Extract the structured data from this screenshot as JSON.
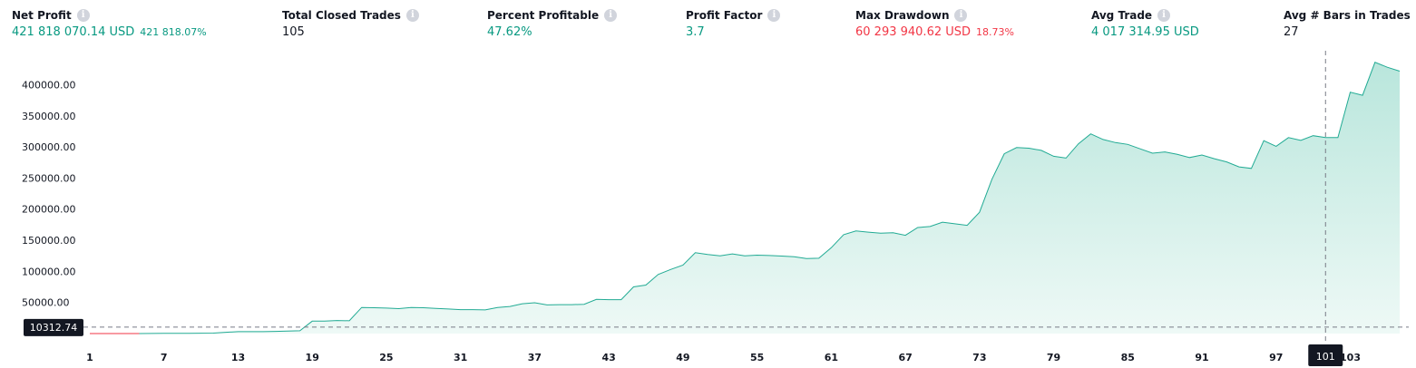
{
  "stats": [
    {
      "label": "Net Profit",
      "value": "421 818 070.14 USD",
      "sub": "421 818.07%",
      "tone": "pos"
    },
    {
      "label": "Total Closed Trades",
      "value": "105",
      "sub": "",
      "tone": "neutral"
    },
    {
      "label": "Percent Profitable",
      "value": "47.62%",
      "sub": "",
      "tone": "pos"
    },
    {
      "label": "Profit Factor",
      "value": "3.7",
      "sub": "",
      "tone": "pos"
    },
    {
      "label": "Max Drawdown",
      "value": "60 293 940.62 USD",
      "sub": "18.73%",
      "tone": "neg"
    },
    {
      "label": "Avg Trade",
      "value": "4 017 314.95 USD",
      "sub": "",
      "tone": "pos"
    },
    {
      "label": "Avg # Bars in Trades",
      "value": "27",
      "sub": "",
      "tone": "neutral"
    }
  ],
  "info_icon": "info-icon",
  "colors": {
    "line": "#22ab94",
    "fill_top": "#b9e6dc",
    "fill_bottom": "#eef9f6",
    "positive": "#089981",
    "negative": "#f23645",
    "crosshair_tag": "#131722"
  },
  "crosshair": {
    "x": 101,
    "y_label": "10312.74",
    "x_label": "101"
  },
  "chart_data": {
    "type": "area",
    "title": "",
    "xlabel": "",
    "ylabel": "",
    "x_ticks": [
      1,
      7,
      13,
      19,
      25,
      31,
      37,
      43,
      49,
      55,
      61,
      67,
      73,
      79,
      85,
      91,
      97,
      103
    ],
    "y_ticks": [
      50000,
      100000,
      150000,
      200000,
      250000,
      300000,
      350000,
      400000
    ],
    "y_tick_labels": [
      "50000.00",
      "100000.00",
      "150000.00",
      "200000.00",
      "250000.00",
      "300000.00",
      "350000.00",
      "400000.00"
    ],
    "xlim": [
      1,
      105
    ],
    "ylim": [
      0,
      440000
    ],
    "grid": false,
    "series": [
      {
        "values": [
          0,
          0,
          0,
          0,
          0,
          200,
          300,
          400,
          500,
          600,
          800,
          2000,
          3000,
          3000,
          3000,
          3500,
          4000,
          4500,
          20000,
          20000,
          21000,
          20500,
          42000,
          41500,
          41000,
          40000,
          42000,
          41500,
          40500,
          39500,
          38500,
          38500,
          38000,
          42000,
          43500,
          48000,
          49500,
          46000,
          46500,
          46500,
          47000,
          55000,
          54500,
          54500,
          75000,
          78000,
          95000,
          103000,
          110000,
          130000,
          127000,
          125000,
          128000,
          125000,
          126000,
          125500,
          124500,
          123500,
          120500,
          121000,
          138000,
          159000,
          165000,
          163000,
          161500,
          162000,
          158000,
          170500,
          172000,
          179000,
          176500,
          174000,
          195000,
          248000,
          289000,
          299000,
          298000,
          294500,
          285000,
          282000,
          305000,
          321000,
          312000,
          307000,
          304000,
          297000,
          290000,
          292000,
          288000,
          283000,
          287000,
          281000,
          276000,
          268000,
          265500,
          310000,
          301000,
          315000,
          310500,
          318000,
          315000,
          315000,
          388000,
          383000,
          436000,
          428000,
          421818
        ]
      }
    ]
  }
}
